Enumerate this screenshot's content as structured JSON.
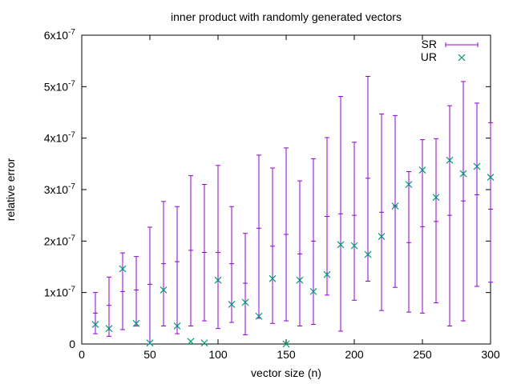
{
  "chart_data": {
    "type": "scatter",
    "title": "inner product with randomly generated vectors",
    "xlabel": "vector size (n)",
    "ylabel": "relative error",
    "xlim": [
      0,
      300
    ],
    "ylim": [
      0,
      6e-07
    ],
    "x_ticks": [
      0,
      50,
      100,
      150,
      200,
      250,
      300
    ],
    "y_ticks": [
      {
        "value": 0,
        "mantissa": "0",
        "exponent": ""
      },
      {
        "value": 1e-07,
        "mantissa": "1x10",
        "exponent": "-7"
      },
      {
        "value": 2e-07,
        "mantissa": "2x10",
        "exponent": "-7"
      },
      {
        "value": 3e-07,
        "mantissa": "3x10",
        "exponent": "-7"
      },
      {
        "value": 4e-07,
        "mantissa": "4x10",
        "exponent": "-7"
      },
      {
        "value": 5e-07,
        "mantissa": "5x10",
        "exponent": "-7"
      },
      {
        "value": 6e-07,
        "mantissa": "6x10",
        "exponent": "-7"
      }
    ],
    "grid": false,
    "legend_position": "top-right",
    "colors": {
      "SR": "#9400d3",
      "UR": "#009e73"
    },
    "series": [
      {
        "name": "SR",
        "kind": "errorbar",
        "x": [
          10,
          20,
          30,
          40,
          50,
          60,
          70,
          80,
          90,
          100,
          110,
          120,
          130,
          140,
          150,
          160,
          170,
          180,
          190,
          200,
          210,
          220,
          230,
          240,
          250,
          260,
          270,
          280,
          290,
          300
        ],
        "y": [
          6e-08,
          7.5e-08,
          1.02e-07,
          1.05e-07,
          1.16e-07,
          1.56e-07,
          1.6e-07,
          1.82e-07,
          1.78e-07,
          1.78e-07,
          1.56e-07,
          1.18e-07,
          2.25e-07,
          1.9e-07,
          2.13e-07,
          1.75e-07,
          2e-07,
          2.48e-07,
          2.53e-07,
          2.5e-07,
          3.22e-07,
          2.56e-07,
          2.68e-07,
          1.97e-07,
          2.28e-07,
          2.38e-07,
          2.5e-07,
          2.78e-07,
          2.9e-07,
          2.62e-07
        ],
        "y_low": [
          2e-08,
          1.5e-08,
          2.8e-08,
          3.5e-08,
          0.0,
          3.5e-08,
          2e-08,
          3.5e-08,
          4.5e-08,
          3e-08,
          4.2e-08,
          1.8e-08,
          5e-08,
          4e-08,
          4.5e-08,
          3.5e-08,
          3.8e-08,
          9.5e-08,
          2.5e-08,
          8.5e-08,
          1.22e-07,
          6.5e-08,
          1.1e-07,
          6.2e-08,
          6e-08,
          8e-08,
          3.5e-08,
          4.5e-08,
          1.12e-07,
          1.2e-07
        ],
        "y_high": [
          1e-07,
          1.3e-07,
          1.77e-07,
          1.7e-07,
          2.27e-07,
          2.77e-07,
          2.67e-07,
          3.27e-07,
          3.1e-07,
          3.47e-07,
          2.67e-07,
          2.15e-07,
          3.67e-07,
          3.42e-07,
          3.81e-07,
          3.17e-07,
          3.6e-07,
          4.01e-07,
          4.81e-07,
          3.92e-07,
          5.2e-07,
          4.47e-07,
          4.44e-07,
          3.35e-07,
          3.97e-07,
          3.99e-07,
          4.63e-07,
          5.1e-07,
          4.68e-07,
          4.3e-07
        ]
      },
      {
        "name": "UR",
        "kind": "scatter",
        "x": [
          10,
          20,
          30,
          40,
          50,
          60,
          70,
          80,
          90,
          100,
          110,
          120,
          130,
          140,
          150,
          160,
          170,
          180,
          190,
          200,
          210,
          220,
          230,
          240,
          250,
          260,
          270,
          280,
          290,
          300
        ],
        "y": [
          3.8e-08,
          3e-08,
          1.46e-07,
          4e-08,
          2e-09,
          1.05e-07,
          3.5e-08,
          5e-09,
          2e-09,
          1.24e-07,
          7.7e-08,
          8.1e-08,
          5.4e-08,
          1.27e-07,
          0.0,
          1.24e-07,
          1.02e-07,
          1.35e-07,
          1.93e-07,
          1.91e-07,
          1.74e-07,
          2.09e-07,
          2.68e-07,
          3.1e-07,
          3.38e-07,
          2.85e-07,
          3.57e-07,
          3.31e-07,
          3.45e-07,
          3.24e-07
        ]
      }
    ]
  }
}
